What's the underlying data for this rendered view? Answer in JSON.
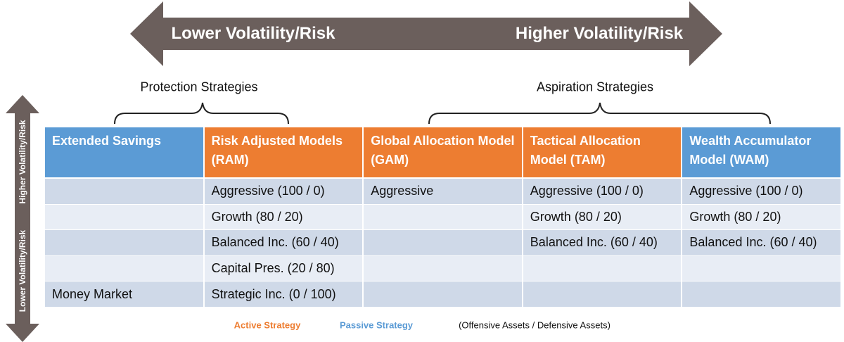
{
  "scale": {
    "left": "Lower Volatility/Risk",
    "right": "Higher Volatility/Risk"
  },
  "vertical_scale": {
    "top": "Higher Volatility/Risk",
    "bottom": "Lower Volatility/Risk"
  },
  "groups": [
    "Protection Strategies",
    "Aspiration Strategies"
  ],
  "table": {
    "columns": [
      {
        "label": "Extended Savings",
        "color": "#5b9bd5"
      },
      {
        "label": "Risk Adjusted Models (RAM)",
        "color": "#ed7d31"
      },
      {
        "label": "Global Allocation Model (GAM)",
        "color": "#ed7d31"
      },
      {
        "label": "Tactical Allocation Model (TAM)",
        "color": "#ed7d31"
      },
      {
        "label": "Wealth Accumulator Model (WAM)",
        "color": "#5b9bd5"
      }
    ],
    "rows": [
      [
        null,
        "Aggressive (100 / 0)",
        "Aggressive",
        "Aggressive (100 / 0)",
        "Aggressive (100 / 0)"
      ],
      [
        null,
        "Growth (80 / 20)",
        null,
        "Growth (80 / 20)",
        "Growth (80 / 20)"
      ],
      [
        null,
        "Balanced Inc. (60 / 40)",
        null,
        "Balanced Inc. (60 / 40)",
        "Balanced Inc. (60 / 40)"
      ],
      [
        null,
        "Capital Pres. (20 / 80)",
        null,
        null,
        null
      ],
      [
        "Money Market",
        "Strategic Inc. (0 / 100)",
        null,
        null,
        null
      ]
    ]
  },
  "legend": [
    {
      "label": "Active Strategy",
      "color": "#ed7d31"
    },
    {
      "label": "Passive Strategy",
      "color": "#5b9bd5"
    },
    {
      "label": "(Offensive Assets / Defensive Assets)",
      "color": "#111111"
    }
  ]
}
